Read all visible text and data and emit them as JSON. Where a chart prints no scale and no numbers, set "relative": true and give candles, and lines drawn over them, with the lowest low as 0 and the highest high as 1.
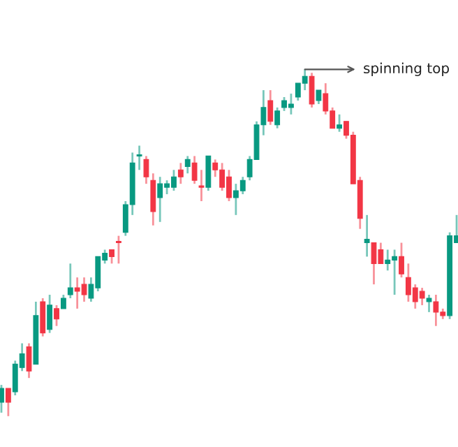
{
  "chart_data": {
    "type": "candlestick",
    "relative": true,
    "categories": [
      null,
      null,
      null,
      null,
      null,
      null,
      null,
      null,
      null,
      null,
      null,
      null,
      null,
      null,
      null,
      null,
      null,
      null,
      null,
      null,
      null,
      null,
      null,
      null,
      null,
      null,
      null,
      null,
      null,
      null,
      null,
      null,
      null,
      null,
      null,
      null,
      null,
      null,
      null,
      null,
      null,
      null,
      null,
      null,
      null,
      null,
      null,
      null,
      null,
      null,
      null,
      null,
      null,
      null,
      null,
      null,
      null,
      null,
      null,
      null,
      null,
      null,
      null,
      null,
      null,
      null,
      null
    ],
    "annotations": [
      "spinning top"
    ],
    "colors": [
      "#089981",
      "#f23645",
      "#089981",
      "#089981",
      "#f23645",
      "#089981",
      "#f23645",
      "#089981",
      "#f23645",
      "#089981",
      "#089981",
      "#f23645",
      "#f23645",
      "#089981",
      "#089981",
      "#089981",
      "#f23645",
      "#f23645",
      "#089981",
      "#089981",
      "#089981",
      "#f23645",
      "#f23645",
      "#089981",
      "#089981",
      "#089981",
      "#f23645",
      "#089981",
      "#f23645",
      "#f23645",
      "#089981",
      "#f23645",
      "#f23645",
      "#f23645",
      "#089981",
      "#089981",
      "#089981",
      "#089981",
      "#089981",
      "#f23645",
      "#089981",
      "#089981",
      "#089981",
      "#089981",
      "#089981",
      "#f23645",
      "#089981",
      "#f23645",
      "#f23645",
      "#089981",
      "#f23645",
      "#f23645",
      "#f23645",
      "#089981",
      "#f23645",
      "#f23645",
      "#089981",
      "#089981",
      "#f23645",
      "#f23645",
      "#f23645",
      "#f23645",
      "#089981",
      "#f23645",
      "#f23645",
      "#089981",
      "#089981"
    ],
    "ohlc": [
      [
        0.04,
        0.09,
        0.01,
        0.08
      ],
      [
        0.08,
        0.08,
        0.0,
        0.04
      ],
      [
        0.07,
        0.16,
        0.06,
        0.15
      ],
      [
        0.14,
        0.21,
        0.13,
        0.18
      ],
      [
        0.2,
        0.21,
        0.11,
        0.13
      ],
      [
        0.15,
        0.33,
        0.15,
        0.29
      ],
      [
        0.33,
        0.34,
        0.23,
        0.24
      ],
      [
        0.25,
        0.35,
        0.24,
        0.32
      ],
      [
        0.31,
        0.32,
        0.26,
        0.28
      ],
      [
        0.31,
        0.35,
        0.31,
        0.34
      ],
      [
        0.35,
        0.44,
        0.34,
        0.37
      ],
      [
        0.37,
        0.4,
        0.31,
        0.36
      ],
      [
        0.38,
        0.4,
        0.33,
        0.35
      ],
      [
        0.34,
        0.4,
        0.33,
        0.38
      ],
      [
        0.37,
        0.46,
        0.36,
        0.46
      ],
      [
        0.45,
        0.48,
        0.44,
        0.47
      ],
      [
        0.48,
        0.48,
        0.44,
        0.46
      ],
      [
        0.5,
        0.52,
        0.44,
        0.5
      ],
      [
        0.53,
        0.62,
        0.52,
        0.61
      ],
      [
        0.61,
        0.76,
        0.58,
        0.73
      ],
      [
        0.75,
        0.78,
        0.71,
        0.75
      ],
      [
        0.74,
        0.75,
        0.67,
        0.69
      ],
      [
        0.68,
        0.7,
        0.55,
        0.59
      ],
      [
        0.63,
        0.69,
        0.56,
        0.67
      ],
      [
        0.66,
        0.68,
        0.64,
        0.67
      ],
      [
        0.66,
        0.71,
        0.65,
        0.69
      ],
      [
        0.71,
        0.73,
        0.67,
        0.69
      ],
      [
        0.72,
        0.75,
        0.7,
        0.74
      ],
      [
        0.73,
        0.75,
        0.67,
        0.68
      ],
      [
        0.66,
        0.71,
        0.62,
        0.66
      ],
      [
        0.66,
        0.75,
        0.65,
        0.75
      ],
      [
        0.73,
        0.74,
        0.69,
        0.71
      ],
      [
        0.71,
        0.73,
        0.65,
        0.66
      ],
      [
        0.69,
        0.71,
        0.62,
        0.63
      ],
      [
        0.63,
        0.67,
        0.58,
        0.65
      ],
      [
        0.65,
        0.69,
        0.64,
        0.68
      ],
      [
        0.69,
        0.75,
        0.68,
        0.74
      ],
      [
        0.74,
        0.85,
        0.74,
        0.84
      ],
      [
        0.84,
        0.94,
        0.81,
        0.89
      ],
      [
        0.91,
        0.94,
        0.84,
        0.85
      ],
      [
        0.84,
        0.89,
        0.83,
        0.88
      ],
      [
        0.89,
        0.92,
        0.88,
        0.91
      ],
      [
        0.89,
        0.93,
        0.87,
        0.9
      ],
      [
        0.92,
        0.96,
        0.91,
        0.96
      ],
      [
        0.96,
        1.0,
        0.94,
        0.98
      ],
      [
        0.98,
        0.99,
        0.89,
        0.9
      ],
      [
        0.91,
        0.94,
        0.9,
        0.94
      ],
      [
        0.93,
        0.96,
        0.87,
        0.88
      ],
      [
        0.88,
        0.89,
        0.83,
        0.83
      ],
      [
        0.83,
        0.87,
        0.82,
        0.84
      ],
      [
        0.85,
        0.85,
        0.8,
        0.81
      ],
      [
        0.81,
        0.82,
        0.67,
        0.67
      ],
      [
        0.68,
        0.69,
        0.54,
        0.57
      ],
      [
        0.5,
        0.58,
        0.46,
        0.51
      ],
      [
        0.5,
        0.5,
        0.38,
        0.44
      ],
      [
        0.48,
        0.5,
        0.44,
        0.44
      ],
      [
        0.44,
        0.48,
        0.42,
        0.45
      ],
      [
        0.45,
        0.48,
        0.35,
        0.46
      ],
      [
        0.46,
        0.5,
        0.4,
        0.41
      ],
      [
        0.4,
        0.44,
        0.33,
        0.35
      ],
      [
        0.37,
        0.38,
        0.31,
        0.33
      ],
      [
        0.36,
        0.37,
        0.32,
        0.34
      ],
      [
        0.33,
        0.35,
        0.3,
        0.34
      ],
      [
        0.33,
        0.35,
        0.26,
        0.3
      ],
      [
        0.3,
        0.31,
        0.28,
        0.29
      ],
      [
        0.29,
        0.53,
        0.28,
        0.52
      ],
      [
        0.5,
        0.58,
        0.5,
        0.52
      ]
    ]
  }
}
